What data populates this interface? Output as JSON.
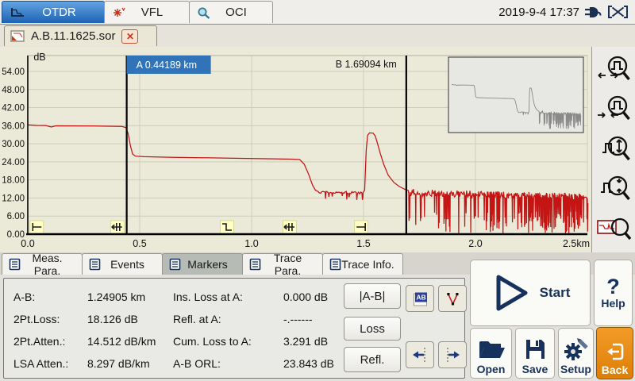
{
  "topbar": {
    "tabs": [
      {
        "label": "OTDR",
        "icon": "otdr-trace-icon",
        "active": true
      },
      {
        "label": "VFL",
        "icon": "vfl-laser-icon",
        "active": false
      },
      {
        "label": "OCI",
        "icon": "oci-inspect-icon",
        "active": false
      }
    ],
    "clock": "2019-9-4 17:37",
    "icons": [
      "ac-power-plug-icon",
      "battery-missing-icon"
    ]
  },
  "filebar": {
    "tab": {
      "name": "A.B.11.1625.sor",
      "icon": "trace-file-icon",
      "close_icon": "close-icon"
    }
  },
  "chart_data": {
    "type": "line",
    "title": "OTDR trace",
    "ylabel": "dB",
    "x_unit": "km",
    "xlim": [
      0,
      2.5
    ],
    "ylim": [
      0,
      54
    ],
    "grid": true,
    "x_ticks": [
      0,
      0.5,
      1.0,
      1.5,
      2.0,
      2.5
    ],
    "x_tick_labels": [
      "0.0",
      "0.5",
      "1.0",
      "1.5",
      "2.0",
      "2.5km"
    ],
    "y_ticks": [
      54,
      48,
      42,
      36,
      30,
      24,
      18,
      12,
      6,
      0
    ],
    "y_tick_labels": [
      "54.00",
      "48.00",
      "42.00",
      "36.00",
      "30.00",
      "24.00",
      "18.00",
      "12.00",
      "6.00",
      "0.00"
    ],
    "trace_color": "#c41414",
    "markers": [
      {
        "name": "A",
        "km": 0.44189,
        "label": "A 0.44189 km",
        "label_style": "blue-box"
      },
      {
        "name": "B",
        "km": 1.69094,
        "label": "B 1.69094 km",
        "label_style": "text"
      }
    ],
    "marker_box_color": "#3173b9",
    "events": [
      {
        "km": 0.04,
        "type": "launch"
      },
      {
        "km": 0.4,
        "type": "reflective"
      },
      {
        "km": 0.89,
        "type": "loss"
      },
      {
        "km": 1.17,
        "type": "reflective"
      },
      {
        "km": 1.49,
        "type": "end"
      }
    ],
    "series": [
      {
        "name": "otdr-trace",
        "segments": [
          {
            "type": "points",
            "points": [
              [
                0,
                36.3
              ],
              [
                0.04,
                36.1
              ],
              [
                0.08,
                36.05
              ],
              [
                0.105,
                35.55
              ],
              [
                0.125,
                35.95
              ],
              [
                0.3,
                35.9
              ],
              [
                0.42,
                35.75
              ],
              [
                0.438,
                35.4
              ],
              [
                0.448,
                33.5
              ],
              [
                0.458,
                29.5
              ],
              [
                0.468,
                26.6
              ],
              [
                0.48,
                25.9
              ],
              [
                0.52,
                25.7
              ],
              [
                0.65,
                25.5
              ],
              [
                0.8,
                25.35
              ],
              [
                0.95,
                25.15
              ],
              [
                1.1,
                25.0
              ],
              [
                1.18,
                24.9
              ],
              [
                1.215,
                24.75
              ],
              [
                1.235,
                23.2
              ],
              [
                1.255,
                19.8
              ],
              [
                1.272,
                16.3
              ],
              [
                1.285,
                14.6
              ],
              [
                1.298,
                14.1
              ]
            ]
          },
          {
            "type": "noise",
            "start": 1.298,
            "end": 1.496,
            "step": 0.005,
            "top_start": 13.9,
            "top_end": 13.7,
            "amp": 0.4,
            "spike_prob": 0.12,
            "low_min": 10.8,
            "low_max": 12.8,
            "seed": 5
          },
          {
            "type": "points",
            "points": [
              [
                1.498,
                13.8
              ],
              [
                1.505,
                14.6
              ],
              [
                1.512,
                28.0
              ],
              [
                1.518,
                32.8
              ],
              [
                1.527,
                33.6
              ],
              [
                1.543,
                33.5
              ],
              [
                1.552,
                32.6
              ],
              [
                1.562,
                30.2
              ],
              [
                1.575,
                26.8
              ],
              [
                1.59,
                23.2
              ],
              [
                1.61,
                19.6
              ],
              [
                1.635,
                17.2
              ],
              [
                1.66,
                15.8
              ],
              [
                1.69,
                14.7
              ],
              [
                1.7,
                14.5
              ]
            ]
          },
          {
            "type": "noise",
            "start": 1.702,
            "end": 2.5,
            "step": 0.003,
            "top_start": 13.8,
            "top_end": 12.3,
            "amp": 1.2,
            "spike_prob_start": 0.12,
            "spike_prob_end": 0.75,
            "low_min": 0.1,
            "low_max": 7.5,
            "seed": 12
          }
        ]
      }
    ],
    "inset": {
      "shown": true,
      "color": "#8a8a8a"
    }
  },
  "sidebar": {
    "buttons": [
      {
        "name": "zoom-horizontal-out"
      },
      {
        "name": "zoom-horizontal-in"
      },
      {
        "name": "zoom-vertical-out"
      },
      {
        "name": "zoom-vertical-in"
      },
      {
        "name": "zoom-full-trace"
      }
    ]
  },
  "bottom_tabs": [
    {
      "label": "Meas. Para.",
      "active": false
    },
    {
      "label": "Events",
      "active": false
    },
    {
      "label": "Markers",
      "active": true
    },
    {
      "label": "Trace Para.",
      "active": false
    },
    {
      "label": "Trace Info.",
      "active": false
    }
  ],
  "markers_panel": {
    "rows": [
      {
        "l1": "A-B:",
        "v1": "1.24905 km",
        "l2": "Ins. Loss at A:",
        "v2": "0.000 dB"
      },
      {
        "l1": "2Pt.Loss:",
        "v1": "18.126 dB",
        "l2": "Refl. at A:",
        "v2": "-.------"
      },
      {
        "l1": "2Pt.Atten.:",
        "v1": "14.512 dB/km",
        "l2": "Cum. Loss to A:",
        "v2": "3.291 dB"
      },
      {
        "l1": "LSA Atten.:",
        "v1": "8.297 dB/km",
        "l2": "A-B ORL:",
        "v2": "23.843 dB"
      }
    ],
    "buttons": {
      "ab": "|A-B|",
      "loss": "Loss",
      "refl": "Refl."
    }
  },
  "actions": {
    "start": "Start",
    "help_mark": "?",
    "help": "Help",
    "open": "Open",
    "save": "Save",
    "setup": "Setup",
    "back": "Back"
  }
}
